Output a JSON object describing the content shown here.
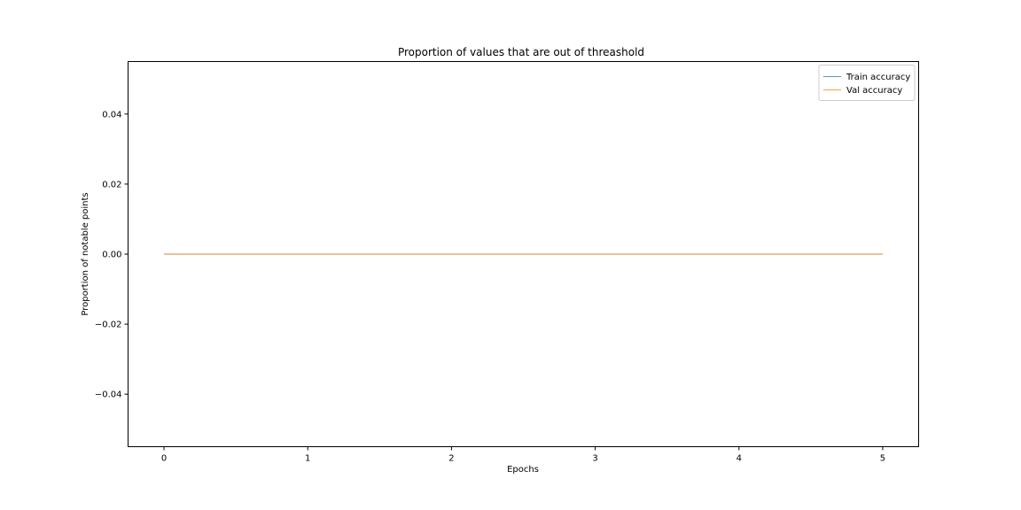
{
  "chart_data": {
    "type": "line",
    "title": "Proportion of values that are out of threashold",
    "xlabel": "Epochs",
    "ylabel": "Proportion of notable points",
    "x": [
      0,
      1,
      2,
      3,
      4,
      5
    ],
    "xticks": [
      "0",
      "1",
      "2",
      "3",
      "4",
      "5"
    ],
    "yticks": [
      "−0.04",
      "−0.02",
      "0.00",
      "0.02",
      "0.04"
    ],
    "ytick_values": [
      -0.04,
      -0.02,
      0.0,
      0.02,
      0.04
    ],
    "xlim": [
      -0.25,
      5.25
    ],
    "ylim": [
      -0.055,
      0.055
    ],
    "grid": false,
    "legend_position": "top-right",
    "series": [
      {
        "name": "Train accuracy",
        "color": "#1f77b4",
        "values": [
          0,
          0,
          0,
          0,
          0,
          0
        ]
      },
      {
        "name": "Val accuracy",
        "color": "#ff7f0e",
        "values": [
          0,
          0,
          0,
          0,
          0,
          0
        ]
      }
    ]
  }
}
